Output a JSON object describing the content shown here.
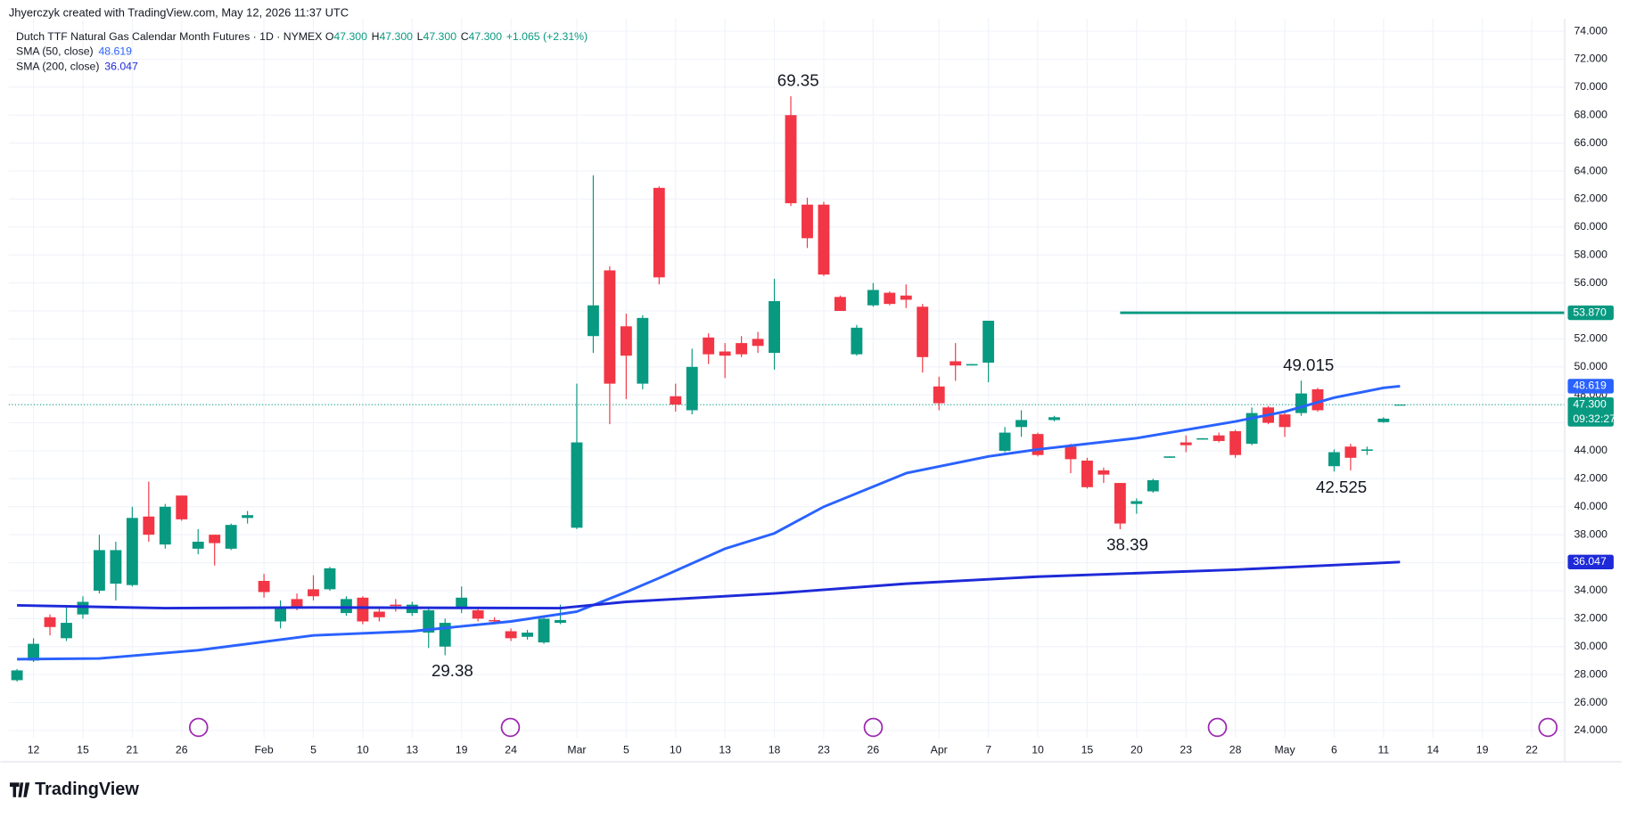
{
  "header": {
    "attribution": "Jhyerczyk created with TradingView.com, May 12, 2026 11:37 UTC",
    "symbol": "Dutch TTF Natural Gas Calendar Month Futures · 1D · NYMEX",
    "ohlc": [
      {
        "key": "O",
        "value": "47.300"
      },
      {
        "key": "H",
        "value": "47.300"
      },
      {
        "key": "L",
        "value": "47.300"
      },
      {
        "key": "C",
        "value": "47.300"
      }
    ],
    "change": "+1.065 (+2.31%)"
  },
  "footer": {
    "brand": "TradingView"
  },
  "chart_data": {
    "type": "candlestick",
    "up_color": "#089981",
    "down_color": "#f23645",
    "open": [
      27.6,
      29.0,
      32.1,
      30.6,
      32.3,
      34.0,
      34.5,
      34.4,
      39.3,
      37.3,
      40.8,
      37.0,
      38.0,
      37.0,
      39.2,
      34.7,
      31.8,
      33.4,
      34.1,
      34.1,
      32.4,
      33.5,
      32.5,
      33.0,
      32.4,
      31.0,
      30.0,
      32.8,
      32.6,
      31.9,
      31.1,
      30.7,
      30.3,
      31.7,
      38.5,
      52.2,
      56.9,
      52.9,
      48.8,
      62.8,
      47.9,
      46.9,
      52.1,
      51.1,
      51.7,
      52.0,
      51.0,
      68.0,
      61.6,
      61.6,
      55.0,
      50.9,
      54.4,
      55.3,
      55.1,
      54.3,
      48.6,
      50.4,
      50.1,
      50.3,
      44.0,
      45.7,
      45.2,
      46.2,
      44.3,
      43.3,
      42.6,
      41.7,
      40.2,
      41.1,
      43.5,
      44.6,
      44.8,
      45.1,
      45.4,
      44.5,
      47.1,
      46.6,
      46.7,
      48.4,
      42.9,
      44.3,
      44.0,
      46.05,
      47.3
    ],
    "high": [
      28.4,
      30.6,
      32.3,
      32.8,
      33.6,
      38.0,
      37.5,
      40.0,
      41.8,
      40.2,
      40.8,
      38.4,
      38.0,
      38.8,
      39.7,
      35.2,
      33.3,
      33.8,
      35.1,
      35.7,
      33.6,
      33.6,
      32.7,
      33.4,
      33.2,
      32.8,
      32.0,
      34.3,
      32.8,
      32.1,
      31.3,
      31.2,
      32.2,
      33.0,
      48.8,
      63.7,
      57.2,
      53.8,
      53.7,
      62.9,
      48.8,
      51.3,
      52.4,
      51.7,
      52.2,
      52.5,
      56.3,
      69.35,
      62.1,
      61.8,
      55.1,
      53.0,
      56.0,
      55.4,
      55.9,
      54.5,
      49.3,
      51.7,
      50.2,
      53.3,
      45.7,
      46.9,
      45.3,
      46.5,
      44.5,
      43.5,
      42.8,
      41.7,
      40.6,
      42.0,
      43.6,
      45.1,
      44.9,
      45.3,
      45.5,
      47.1,
      47.2,
      46.8,
      49.015,
      48.5,
      44.1,
      44.5,
      44.3,
      46.4,
      47.3
    ],
    "low": [
      27.5,
      28.9,
      30.8,
      30.4,
      32.0,
      33.8,
      33.3,
      34.3,
      37.5,
      37.0,
      39.0,
      36.6,
      35.8,
      36.9,
      38.8,
      33.5,
      31.3,
      32.6,
      33.3,
      34.0,
      32.2,
      31.6,
      31.8,
      32.5,
      32.2,
      29.9,
      29.38,
      32.4,
      31.8,
      31.6,
      30.4,
      30.5,
      30.2,
      31.6,
      38.4,
      51.0,
      45.9,
      47.7,
      48.4,
      55.9,
      46.8,
      46.6,
      50.2,
      49.2,
      50.7,
      51.0,
      49.8,
      61.5,
      58.5,
      56.5,
      54.0,
      50.8,
      54.3,
      54.4,
      54.2,
      49.6,
      46.9,
      49.0,
      50.1,
      48.9,
      43.9,
      45.0,
      43.6,
      46.1,
      42.4,
      41.3,
      41.7,
      38.39,
      39.5,
      41.0,
      43.5,
      43.9,
      44.8,
      44.6,
      43.5,
      44.4,
      45.9,
      45.0,
      46.5,
      46.8,
      42.525,
      42.6,
      43.7,
      46.0,
      47.3
    ],
    "close": [
      28.3,
      30.2,
      31.4,
      31.7,
      33.2,
      36.9,
      36.9,
      39.2,
      38.0,
      40.0,
      39.1,
      37.5,
      37.4,
      38.7,
      39.4,
      33.9,
      32.8,
      32.8,
      33.6,
      35.6,
      33.4,
      31.8,
      32.1,
      32.9,
      33.0,
      32.6,
      31.7,
      33.5,
      32.0,
      31.8,
      30.6,
      31.0,
      32.0,
      31.9,
      44.6,
      54.4,
      48.8,
      50.8,
      53.5,
      56.4,
      47.3,
      50.0,
      50.9,
      50.8,
      50.9,
      51.5,
      54.7,
      61.7,
      59.2,
      56.6,
      54.0,
      52.8,
      55.5,
      54.5,
      54.8,
      50.7,
      47.4,
      50.1,
      50.2,
      53.3,
      45.3,
      46.2,
      43.7,
      46.4,
      43.4,
      41.4,
      42.3,
      38.8,
      40.4,
      41.9,
      43.6,
      44.4,
      44.9,
      44.7,
      43.7,
      46.7,
      46.0,
      45.7,
      48.1,
      46.9,
      43.9,
      43.5,
      44.1,
      46.3,
      47.3
    ],
    "series": [
      {
        "name": "SMA (50, close)",
        "color": "#2962ff",
        "x": [
          0,
          5,
          11,
          18,
          24,
          30,
          34,
          37,
          39,
          43,
          46,
          49,
          54,
          59,
          62,
          68,
          74,
          77,
          80,
          83,
          84
        ],
        "values": [
          29.1,
          29.15,
          29.74,
          30.8,
          31.1,
          31.8,
          32.5,
          33.9,
          34.9,
          37.0,
          38.1,
          40.0,
          42.4,
          43.6,
          44.1,
          44.9,
          46.1,
          46.8,
          47.8,
          48.5,
          48.619
        ]
      },
      {
        "name": "SMA (200, close)",
        "color": "#1e2ad8",
        "x": [
          0,
          9,
          18,
          33,
          37,
          46,
          54,
          62,
          74,
          84
        ],
        "values": [
          32.95,
          32.75,
          32.8,
          32.75,
          33.2,
          33.8,
          34.5,
          35.0,
          35.5,
          36.047
        ]
      }
    ],
    "hline": {
      "value": 53.87,
      "label": "53.870",
      "color": "#089981",
      "start": 67
    },
    "last": {
      "value": 47.3,
      "label": "47.300",
      "countdown": "09:32:27"
    },
    "annotations": [
      69.35,
      29.38,
      49.015,
      38.39,
      42.525
    ],
    "annotation_index": [
      47,
      26,
      78,
      67,
      80
    ],
    "xlim": [
      -0.5,
      94
    ],
    "ylim": [
      23.48,
      74.89
    ],
    "xticks": [
      {
        "value": 1,
        "label": "12"
      },
      {
        "value": 4,
        "label": "15"
      },
      {
        "value": 7,
        "label": "21"
      },
      {
        "value": 10,
        "label": "26"
      },
      {
        "value": 15,
        "label": "Feb"
      },
      {
        "value": 18,
        "label": "5"
      },
      {
        "value": 21,
        "label": "10"
      },
      {
        "value": 24,
        "label": "13"
      },
      {
        "value": 27,
        "label": "19"
      },
      {
        "value": 30,
        "label": "24"
      },
      {
        "value": 34,
        "label": "Mar"
      },
      {
        "value": 37,
        "label": "5"
      },
      {
        "value": 40,
        "label": "10"
      },
      {
        "value": 43,
        "label": "13"
      },
      {
        "value": 46,
        "label": "18"
      },
      {
        "value": 49,
        "label": "23"
      },
      {
        "value": 52,
        "label": "26"
      },
      {
        "value": 56,
        "label": "Apr"
      },
      {
        "value": 59,
        "label": "7"
      },
      {
        "value": 62,
        "label": "10"
      },
      {
        "value": 65,
        "label": "15"
      },
      {
        "value": 68,
        "label": "20"
      },
      {
        "value": 71,
        "label": "23"
      },
      {
        "value": 74,
        "label": "28"
      },
      {
        "value": 77,
        "label": "May"
      },
      {
        "value": 80,
        "label": "6"
      },
      {
        "value": 83,
        "label": "11"
      },
      {
        "value": 86,
        "label": "14"
      },
      {
        "value": 89,
        "label": "19"
      },
      {
        "value": 92,
        "label": "22"
      }
    ],
    "yticks": [
      {
        "value": 24,
        "label": "24.000"
      },
      {
        "value": 26,
        "label": "26.000"
      },
      {
        "value": 28,
        "label": "28.000"
      },
      {
        "value": 30,
        "label": "30.000"
      },
      {
        "value": 32,
        "label": "32.000"
      },
      {
        "value": 34,
        "label": "34.000"
      },
      {
        "value": 36,
        "label": "36.000"
      },
      {
        "value": 38,
        "label": "38.000"
      },
      {
        "value": 40,
        "label": "40.000"
      },
      {
        "value": 42,
        "label": "42.000"
      },
      {
        "value": 44,
        "label": "44.000"
      },
      {
        "value": 46,
        "label": "46.000"
      },
      {
        "value": 48,
        "label": "48.000"
      },
      {
        "value": 50,
        "label": "50.000"
      },
      {
        "value": 52,
        "label": "52.000"
      },
      {
        "value": 54,
        "label": "54.000"
      },
      {
        "value": 56,
        "label": "56.000"
      },
      {
        "value": 58,
        "label": "58.000"
      },
      {
        "value": 60,
        "label": "60.000"
      },
      {
        "value": 62,
        "label": "62.000"
      },
      {
        "value": 64,
        "label": "64.000"
      },
      {
        "value": 66,
        "label": "66.000"
      },
      {
        "value": 68,
        "label": "68.000"
      },
      {
        "value": 70,
        "label": "70.000"
      },
      {
        "value": 72,
        "label": "72.000"
      },
      {
        "value": 74,
        "label": "74.000"
      }
    ],
    "grid": true
  }
}
